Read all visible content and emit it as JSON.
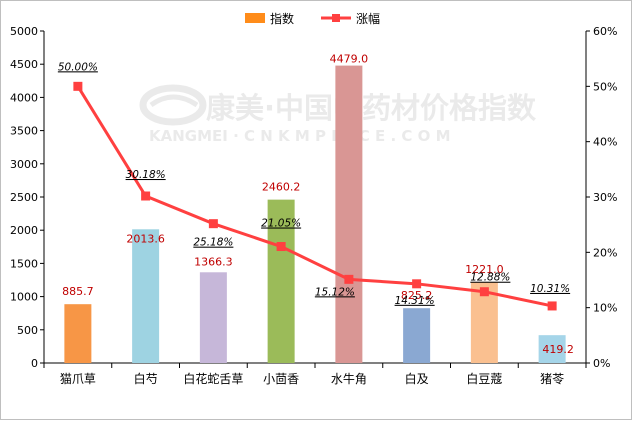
{
  "chart_data": {
    "type": "bar+line",
    "categories": [
      "猫爪草",
      "白芍",
      "白花蛇舌草",
      "小茴香",
      "水牛角",
      "白及",
      "白豆蔻",
      "猪苓"
    ],
    "series": [
      {
        "name": "指数",
        "type": "bar",
        "axis": "left",
        "values": [
          885.7,
          2013.6,
          1366.3,
          2460.2,
          4479.0,
          825.2,
          1221.0,
          419.2
        ],
        "value_labels": [
          "885.7",
          "2013.6",
          "1366.3",
          "2460.2",
          "4479.0",
          "825.2",
          "1221.0",
          "419.2"
        ],
        "colors": [
          "#f79646",
          "#9ed3e2",
          "#c6b7d9",
          "#9bbb59",
          "#d99694",
          "#8aa8d2",
          "#fac090",
          "#a5d5e9"
        ]
      },
      {
        "name": "涨幅",
        "type": "line",
        "axis": "right",
        "values": [
          50.0,
          30.18,
          25.18,
          21.05,
          15.12,
          14.31,
          12.88,
          10.31
        ],
        "value_labels": [
          "50.00%",
          "30.18%",
          "25.18%",
          "21.05%",
          "15.12%",
          "14.31%",
          "12.88%",
          "10.31%"
        ],
        "color": "#ff4040"
      }
    ],
    "y_left": {
      "min": 0,
      "max": 5000,
      "ticks": [
        "0",
        "500",
        "1000",
        "1500",
        "2000",
        "2500",
        "3000",
        "3500",
        "4000",
        "4500",
        "5000"
      ]
    },
    "y_right": {
      "min": 0,
      "max": 60,
      "ticks": [
        "0%",
        "10%",
        "20%",
        "30%",
        "40%",
        "50%",
        "60%"
      ]
    },
    "legend_position": "top-center",
    "grid": false,
    "watermark": {
      "line1": "康美·中国中药材价格指数",
      "line2": "KANGMEI · C N K M P R I C E . C O M"
    }
  }
}
